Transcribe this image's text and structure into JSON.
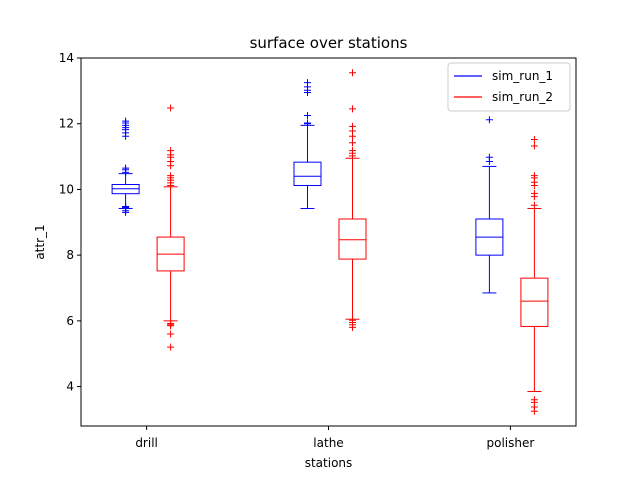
{
  "chart_data": {
    "type": "box",
    "title": "surface over stations",
    "xlabel": "stations",
    "ylabel": "attr_1",
    "categories": [
      "drill",
      "lathe",
      "polisher"
    ],
    "ylim": [
      2.8,
      14.0
    ],
    "yticks": [
      4,
      6,
      8,
      10,
      12,
      14
    ],
    "yticklabels": [
      "4",
      "6",
      "8",
      "10",
      "12",
      "14"
    ],
    "grid": false,
    "legend": {
      "position": "upper right"
    },
    "series": [
      {
        "name": "sim_run_1",
        "color": "#0000ff",
        "boxes": [
          {
            "category": "drill",
            "whisker_low": 9.42,
            "q1": 9.87,
            "median": 10.02,
            "q3": 10.15,
            "whisker_high": 10.48,
            "outliers": [
              9.3,
              9.35,
              9.42,
              9.45,
              9.48,
              10.52,
              10.6,
              10.65,
              11.62,
              11.72,
              11.82,
              11.88,
              11.95,
              12.02,
              12.08
            ]
          },
          {
            "category": "lathe",
            "whisker_low": 9.42,
            "q1": 10.12,
            "median": 10.4,
            "q3": 10.83,
            "whisker_high": 11.95,
            "outliers": [
              12.0,
              12.02,
              12.25,
              12.95,
              13.02,
              13.12,
              13.25
            ]
          },
          {
            "category": "polisher",
            "whisker_low": 6.85,
            "q1": 8.0,
            "median": 8.55,
            "q3": 9.1,
            "whisker_high": 10.7,
            "outliers": [
              10.85,
              10.98,
              12.12
            ]
          }
        ]
      },
      {
        "name": "sim_run_2",
        "color": "#ff0000",
        "boxes": [
          {
            "category": "drill",
            "whisker_low": 6.0,
            "q1": 7.52,
            "median": 8.03,
            "q3": 8.55,
            "whisker_high": 10.08,
            "outliers": [
              5.2,
              5.6,
              5.85,
              5.88,
              5.92,
              10.12,
              10.2,
              10.28,
              10.35,
              10.42,
              10.72,
              10.85,
              10.98,
              11.05,
              11.18,
              12.48
            ]
          },
          {
            "category": "lathe",
            "whisker_low": 6.05,
            "q1": 7.88,
            "median": 8.47,
            "q3": 9.1,
            "whisker_high": 10.95,
            "outliers": [
              5.8,
              5.88,
              5.95,
              6.02,
              11.02,
              11.1,
              11.18,
              11.42,
              11.62,
              11.78,
              11.92,
              12.45,
              13.55
            ]
          },
          {
            "category": "polisher",
            "whisker_low": 3.85,
            "q1": 5.83,
            "median": 6.6,
            "q3": 7.3,
            "whisker_high": 9.42,
            "outliers": [
              3.25,
              3.38,
              3.52,
              3.6,
              9.52,
              9.78,
              9.88,
              10.12,
              10.22,
              10.35,
              10.42,
              11.32,
              11.52
            ]
          }
        ]
      }
    ]
  }
}
